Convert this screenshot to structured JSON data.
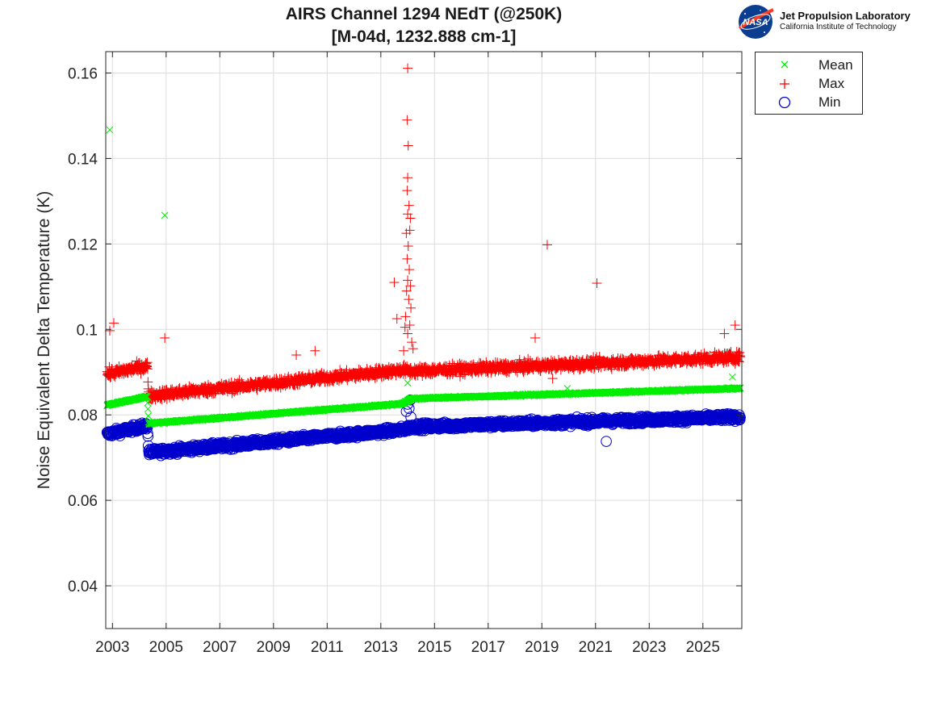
{
  "header": {
    "title_line1": "AIRS Channel 1294 NEdT (@250K)",
    "title_line2": "[M-04d, 1232.888 cm-1]"
  },
  "logo": {
    "badge_text": "NASA",
    "org_name": "Jet Propulsion Laboratory",
    "org_sub": "California Institute of Technology"
  },
  "legend": {
    "items": [
      {
        "label": "Mean",
        "marker": "x",
        "color": "#00ee00"
      },
      {
        "label": "Max",
        "marker": "+",
        "color": "#ff0000"
      },
      {
        "label": "Min",
        "marker": "o",
        "color": "#0000cc"
      }
    ]
  },
  "chart_data": {
    "type": "scatter",
    "title": "AIRS Channel 1294 NEdT (@250K) [M-04d, 1232.888 cm-1]",
    "xlabel": "",
    "ylabel": "Noise Equivalent Delta Temperature (K)",
    "xlim": [
      2002.75,
      2026.45
    ],
    "ylim": [
      0.03,
      0.165
    ],
    "x_ticks": [
      2003,
      2005,
      2007,
      2009,
      2011,
      2013,
      2015,
      2017,
      2019,
      2021,
      2023,
      2025
    ],
    "y_ticks": [
      0.04,
      0.06,
      0.08,
      0.1,
      0.12,
      0.14,
      0.16
    ],
    "y_tick_labels": [
      "0.04",
      "0.06",
      "0.08",
      "0.1",
      "0.12",
      "0.14",
      "0.16"
    ],
    "grid": true,
    "legend_position": "outside-top-right",
    "series": [
      {
        "name": "Mean",
        "marker": "x",
        "color": "#00ee00",
        "trend": [
          [
            2002.8,
            0.0823
          ],
          [
            2004.3,
            0.0843
          ],
          [
            2004.35,
            0.078
          ],
          [
            2013.8,
            0.0826
          ],
          [
            2014.15,
            0.0838
          ],
          [
            2026.4,
            0.0862
          ]
        ],
        "spread": 0.0004,
        "outliers": [
          [
            2002.9,
            0.1467
          ],
          [
            2004.95,
            0.1267
          ],
          [
            2014.0,
            0.0875
          ],
          [
            2019.95,
            0.0862
          ],
          [
            2026.1,
            0.0889
          ]
        ]
      },
      {
        "name": "Max",
        "marker": "+",
        "color": "#ff0000",
        "trend": [
          [
            2002.8,
            0.0895
          ],
          [
            2004.3,
            0.0915
          ],
          [
            2004.35,
            0.0845
          ],
          [
            2013.8,
            0.0905
          ],
          [
            2014.15,
            0.0902
          ],
          [
            2026.4,
            0.0935
          ]
        ],
        "spread": 0.0022,
        "outliers": [
          [
            2002.9,
            0.0997
          ],
          [
            2003.05,
            0.1015
          ],
          [
            2004.95,
            0.098
          ],
          [
            2009.85,
            0.094
          ],
          [
            2010.55,
            0.095
          ],
          [
            2013.5,
            0.111
          ],
          [
            2013.6,
            0.1025
          ],
          [
            2013.85,
            0.095
          ],
          [
            2013.9,
            0.1005
          ],
          [
            2014.0,
            0.1611
          ],
          [
            2013.98,
            0.149
          ],
          [
            2014.02,
            0.143
          ],
          [
            2014.0,
            0.1355
          ],
          [
            2013.98,
            0.1325
          ],
          [
            2014.05,
            0.129
          ],
          [
            2014.0,
            0.127
          ],
          [
            2014.1,
            0.126
          ],
          [
            2013.95,
            0.1225
          ],
          [
            2014.08,
            0.1232
          ],
          [
            2014.02,
            0.1195
          ],
          [
            2013.98,
            0.1165
          ],
          [
            2014.06,
            0.114
          ],
          [
            2014.0,
            0.1115
          ],
          [
            2014.1,
            0.1102
          ],
          [
            2013.96,
            0.109
          ],
          [
            2014.04,
            0.107
          ],
          [
            2014.12,
            0.105
          ],
          [
            2013.92,
            0.103
          ],
          [
            2014.08,
            0.101
          ],
          [
            2014.0,
            0.099
          ],
          [
            2014.15,
            0.097
          ],
          [
            2014.2,
            0.0955
          ],
          [
            2018.75,
            0.098
          ],
          [
            2019.2,
            0.1198
          ],
          [
            2019.4,
            0.0885
          ],
          [
            2021.05,
            0.1108
          ],
          [
            2025.8,
            0.099
          ],
          [
            2026.2,
            0.101
          ]
        ]
      },
      {
        "name": "Min",
        "marker": "o",
        "color": "#0000cc",
        "trend": [
          [
            2002.8,
            0.0755
          ],
          [
            2004.3,
            0.0775
          ],
          [
            2004.35,
            0.0712
          ],
          [
            2013.8,
            0.0765
          ],
          [
            2014.15,
            0.0772
          ],
          [
            2026.4,
            0.0795
          ]
        ],
        "spread": 0.0015,
        "outliers": [
          [
            2013.95,
            0.0808
          ],
          [
            2014.0,
            0.0825
          ],
          [
            2014.05,
            0.0815
          ],
          [
            2014.1,
            0.0835
          ],
          [
            2014.12,
            0.0795
          ],
          [
            2021.4,
            0.0738
          ]
        ]
      }
    ]
  }
}
